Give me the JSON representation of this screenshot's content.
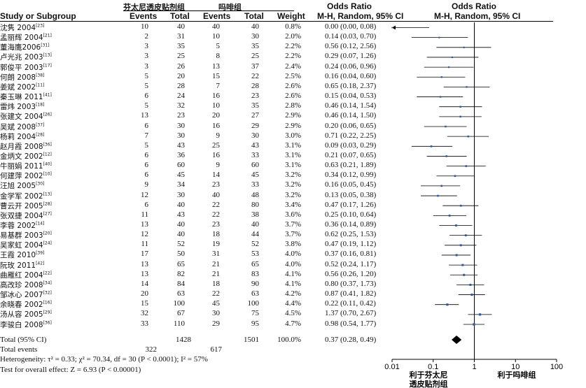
{
  "headers": {
    "group1": "芬太尼透皮贴剂组",
    "group2": "吗啡组",
    "study": "Study or Subgroup",
    "events1": "Events",
    "total1": "Total",
    "events2": "Events",
    "total2": "Total",
    "weight": "Weight",
    "or_title": "Odds Ratio",
    "or_method": "M-H, Random, 95% CI",
    "plot_title": "Odds Ratio",
    "plot_method": "M-H, Random, 95% CI"
  },
  "studies": [
    {
      "name": "沈隽 2004",
      "ref": "[23]",
      "e1": "10",
      "t1": "40",
      "e2": "40",
      "t2": "40",
      "w": "0.8%",
      "or": "0.00 (0.00, 0.08)"
    },
    {
      "name": "孟丽辉 2004",
      "ref": "[21]",
      "e1": "2",
      "t1": "31",
      "e2": "10",
      "t2": "30",
      "w": "2.0%",
      "or": "0.14 (0.03, 0.70)"
    },
    {
      "name": "董海鹰2006",
      "ref": "[31]",
      "e1": "3",
      "t1": "35",
      "e2": "5",
      "t2": "35",
      "w": "2.2%",
      "or": "0.56 (0.12, 2.56)"
    },
    {
      "name": "卢光兆 2003",
      "ref": "[13]",
      "e1": "3",
      "t1": "25",
      "e2": "8",
      "t2": "25",
      "w": "2.2%",
      "or": "0.29 (0.07, 1.26)"
    },
    {
      "name": "郭俊平 2003",
      "ref": "[17]",
      "e1": "3",
      "t1": "26",
      "e2": "13",
      "t2": "37",
      "w": "2.4%",
      "or": "0.24 (0.06, 0.96)"
    },
    {
      "name": "何朗 2008",
      "ref": "[38]",
      "e1": "5",
      "t1": "20",
      "e2": "15",
      "t2": "22",
      "w": "2.5%",
      "or": "0.16 (0.04, 0.60)"
    },
    {
      "name": "姜斌 2002",
      "ref": "[11]",
      "e1": "5",
      "t1": "28",
      "e2": "7",
      "t2": "28",
      "w": "2.6%",
      "or": "0.65 (0.18, 2.37)"
    },
    {
      "name": "秦玉琳 2011",
      "ref": "[41]",
      "e1": "6",
      "t1": "24",
      "e2": "16",
      "t2": "23",
      "w": "2.6%",
      "or": "0.15 (0.04, 0.53)"
    },
    {
      "name": "雷炜 2003",
      "ref": "[18]",
      "e1": "5",
      "t1": "32",
      "e2": "10",
      "t2": "35",
      "w": "2.8%",
      "or": "0.46 (0.14, 1.54)"
    },
    {
      "name": "张建文 2004",
      "ref": "[26]",
      "e1": "13",
      "t1": "23",
      "e2": "20",
      "t2": "27",
      "w": "2.9%",
      "or": "0.46 (0.14, 1.50)"
    },
    {
      "name": "吴斌 2008",
      "ref": "[37]",
      "e1": "6",
      "t1": "30",
      "e2": "16",
      "t2": "29",
      "w": "2.9%",
      "or": "0.20 (0.06, 0.65)"
    },
    {
      "name": "杨莉 2004",
      "ref": "[28]",
      "e1": "7",
      "t1": "30",
      "e2": "9",
      "t2": "30",
      "w": "3.0%",
      "or": "0.71 (0.22, 2.25)"
    },
    {
      "name": "赵月霞 2008",
      "ref": "[36]",
      "e1": "5",
      "t1": "43",
      "e2": "25",
      "t2": "43",
      "w": "3.1%",
      "or": "0.09 (0.03, 0.29)"
    },
    {
      "name": "金炳文 2002",
      "ref": "[12]",
      "e1": "6",
      "t1": "36",
      "e2": "16",
      "t2": "33",
      "w": "3.1%",
      "or": "0.21 (0.07, 0.65)"
    },
    {
      "name": "牛丽娟 2011",
      "ref": "[40]",
      "e1": "6",
      "t1": "60",
      "e2": "9",
      "t2": "60",
      "w": "3.1%",
      "or": "0.63 (0.21, 1.89)"
    },
    {
      "name": "何建萍 2002",
      "ref": "[10]",
      "e1": "6",
      "t1": "45",
      "e2": "14",
      "t2": "45",
      "w": "3.2%",
      "or": "0.34 (0.12, 0.99)"
    },
    {
      "name": "汪旭 2005",
      "ref": "[30]",
      "e1": "9",
      "t1": "34",
      "e2": "23",
      "t2": "33",
      "w": "3.2%",
      "or": "0.16 (0.05, 0.45)"
    },
    {
      "name": "金学军 2002",
      "ref": "[13]",
      "e1": "12",
      "t1": "30",
      "e2": "40",
      "t2": "48",
      "w": "3.2%",
      "or": "0.13 (0.05, 0.38)"
    },
    {
      "name": "曹云开 2005",
      "ref": "[28]",
      "e1": "6",
      "t1": "40",
      "e2": "22",
      "t2": "80",
      "w": "3.4%",
      "or": "0.47 (0.17, 1.26)"
    },
    {
      "name": "张双捷 2004",
      "ref": "[27]",
      "e1": "11",
      "t1": "43",
      "e2": "22",
      "t2": "38",
      "w": "3.6%",
      "or": "0.25 (0.10, 0.64)"
    },
    {
      "name": "李蓉 2002",
      "ref": "[14]",
      "e1": "13",
      "t1": "40",
      "e2": "23",
      "t2": "40",
      "w": "3.7%",
      "or": "0.36 (0.14, 0.89)"
    },
    {
      "name": "易基群 2003",
      "ref": "[20]",
      "e1": "12",
      "t1": "40",
      "e2": "18",
      "t2": "44",
      "w": "3.7%",
      "or": "0.62 (0.25, 1.53)"
    },
    {
      "name": "吴家虹 2004",
      "ref": "[24]",
      "e1": "11",
      "t1": "52",
      "e2": "19",
      "t2": "52",
      "w": "3.8%",
      "or": "0.47 (0.19, 1.12)"
    },
    {
      "name": "王霞 2010",
      "ref": "[39]",
      "e1": "17",
      "t1": "50",
      "e2": "31",
      "t2": "53",
      "w": "4.0%",
      "or": "0.37 (0.16, 0.81)"
    },
    {
      "name": "阮玫 2011",
      "ref": "[42]",
      "e1": "13",
      "t1": "65",
      "e2": "21",
      "t2": "65",
      "w": "4.0%",
      "or": "0.52 (0.24, 1.17)"
    },
    {
      "name": "曲雁红 2004",
      "ref": "[22]",
      "e1": "13",
      "t1": "82",
      "e2": "21",
      "t2": "83",
      "w": "4.1%",
      "or": "0.56 (0.26, 1.20)"
    },
    {
      "name": "高改珍 2008",
      "ref": "[34]",
      "e1": "14",
      "t1": "84",
      "e2": "18",
      "t2": "90",
      "w": "4.1%",
      "or": "0.80 (0.37, 1.73)"
    },
    {
      "name": "邹冰心 2007",
      "ref": "[32]",
      "e1": "20",
      "t1": "63",
      "e2": "22",
      "t2": "63",
      "w": "4.2%",
      "or": "0.87 (0.41, 1.82)"
    },
    {
      "name": "余晓春 2002",
      "ref": "[16]",
      "e1": "15",
      "t1": "100",
      "e2": "45",
      "t2": "100",
      "w": "4.4%",
      "or": "0.22 (0.11, 0.42)"
    },
    {
      "name": "汤从容 2005",
      "ref": "[29]",
      "e1": "32",
      "t1": "67",
      "e2": "30",
      "t2": "75",
      "w": "4.5%",
      "or": "1.37 (0.70, 2.67)"
    },
    {
      "name": "李骏白 2008",
      "ref": "[36]",
      "e1": "33",
      "t1": "110",
      "e2": "29",
      "t2": "95",
      "w": "4.7%",
      "or": "0.98 (0.54, 1.77)"
    }
  ],
  "total": {
    "label": "Total (95% CI)",
    "t1": "1428",
    "t2": "1501",
    "w": "100.0%",
    "or": "0.37 (0.28, 0.49)"
  },
  "total_events": {
    "label": "Total events",
    "e1": "322",
    "e2": "617"
  },
  "heterogeneity": "Heterogeneity: τ² = 0.33; χ² = 70.34, df = 30 (P < 0.0001); I² = 57%",
  "overall_effect": "Test for overall effect: Z = 6.93 (P < 0.00001)",
  "axis": {
    "ticks": [
      "0.01",
      "0.1",
      "1",
      "10",
      "100"
    ],
    "favours_left": "利于芬太尼透皮贴剂组",
    "favours_right": "利于吗啡组"
  },
  "chart_data": {
    "type": "forest",
    "scale": "log",
    "xlim": [
      0.01,
      100
    ],
    "null_line": 1,
    "estimates": [
      {
        "or": 0.0,
        "lo": 0.0,
        "hi": 0.08,
        "weight": 0.8
      },
      {
        "or": 0.14,
        "lo": 0.03,
        "hi": 0.7,
        "weight": 2.0
      },
      {
        "or": 0.56,
        "lo": 0.12,
        "hi": 2.56,
        "weight": 2.2
      },
      {
        "or": 0.29,
        "lo": 0.07,
        "hi": 1.26,
        "weight": 2.2
      },
      {
        "or": 0.24,
        "lo": 0.06,
        "hi": 0.96,
        "weight": 2.4
      },
      {
        "or": 0.16,
        "lo": 0.04,
        "hi": 0.6,
        "weight": 2.5
      },
      {
        "or": 0.65,
        "lo": 0.18,
        "hi": 2.37,
        "weight": 2.6
      },
      {
        "or": 0.15,
        "lo": 0.04,
        "hi": 0.53,
        "weight": 2.6
      },
      {
        "or": 0.46,
        "lo": 0.14,
        "hi": 1.54,
        "weight": 2.8
      },
      {
        "or": 0.46,
        "lo": 0.14,
        "hi": 1.5,
        "weight": 2.9
      },
      {
        "or": 0.2,
        "lo": 0.06,
        "hi": 0.65,
        "weight": 2.9
      },
      {
        "or": 0.71,
        "lo": 0.22,
        "hi": 2.25,
        "weight": 3.0
      },
      {
        "or": 0.09,
        "lo": 0.03,
        "hi": 0.29,
        "weight": 3.1
      },
      {
        "or": 0.21,
        "lo": 0.07,
        "hi": 0.65,
        "weight": 3.1
      },
      {
        "or": 0.63,
        "lo": 0.21,
        "hi": 1.89,
        "weight": 3.1
      },
      {
        "or": 0.34,
        "lo": 0.12,
        "hi": 0.99,
        "weight": 3.2
      },
      {
        "or": 0.16,
        "lo": 0.05,
        "hi": 0.45,
        "weight": 3.2
      },
      {
        "or": 0.13,
        "lo": 0.05,
        "hi": 0.38,
        "weight": 3.2
      },
      {
        "or": 0.47,
        "lo": 0.17,
        "hi": 1.26,
        "weight": 3.4
      },
      {
        "or": 0.25,
        "lo": 0.1,
        "hi": 0.64,
        "weight": 3.6
      },
      {
        "or": 0.36,
        "lo": 0.14,
        "hi": 0.89,
        "weight": 3.7
      },
      {
        "or": 0.62,
        "lo": 0.25,
        "hi": 1.53,
        "weight": 3.7
      },
      {
        "or": 0.47,
        "lo": 0.19,
        "hi": 1.12,
        "weight": 3.8
      },
      {
        "or": 0.37,
        "lo": 0.16,
        "hi": 0.81,
        "weight": 4.0
      },
      {
        "or": 0.52,
        "lo": 0.24,
        "hi": 1.17,
        "weight": 4.0
      },
      {
        "or": 0.56,
        "lo": 0.26,
        "hi": 1.2,
        "weight": 4.1
      },
      {
        "or": 0.8,
        "lo": 0.37,
        "hi": 1.73,
        "weight": 4.1
      },
      {
        "or": 0.87,
        "lo": 0.41,
        "hi": 1.82,
        "weight": 4.2
      },
      {
        "or": 0.22,
        "lo": 0.11,
        "hi": 0.42,
        "weight": 4.4
      },
      {
        "or": 1.37,
        "lo": 0.7,
        "hi": 2.67,
        "weight": 4.5
      },
      {
        "or": 0.98,
        "lo": 0.54,
        "hi": 1.77,
        "weight": 4.7
      }
    ],
    "pooled": {
      "or": 0.37,
      "lo": 0.28,
      "hi": 0.49
    }
  }
}
